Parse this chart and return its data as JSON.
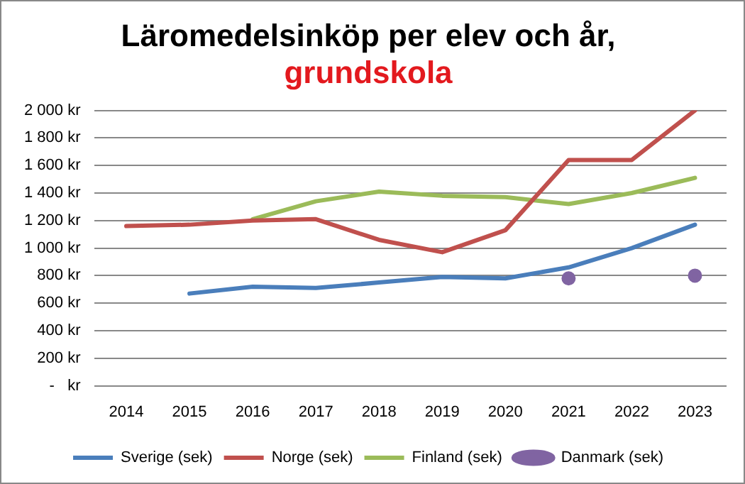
{
  "chart_data": {
    "type": "line",
    "title": "Läromedelsinköp per elev och år,",
    "subtitle": "grundskola",
    "categories": [
      "2014",
      "2015",
      "2016",
      "2017",
      "2018",
      "2019",
      "2020",
      "2021",
      "2022",
      "2023"
    ],
    "series": [
      {
        "name": "Sverige (sek)",
        "color": "#4a7ebb",
        "marker": "none",
        "values": [
          null,
          670,
          720,
          710,
          750,
          790,
          780,
          860,
          1000,
          1170
        ]
      },
      {
        "name": "Norge (sek)",
        "color": "#c0504d",
        "marker": "none",
        "values": [
          1160,
          1170,
          1200,
          1210,
          1060,
          970,
          1130,
          1640,
          1640,
          2000
        ]
      },
      {
        "name": "Finland (sek)",
        "color": "#9bbb59",
        "marker": "none",
        "values": [
          null,
          null,
          1210,
          1340,
          1410,
          1380,
          1370,
          1320,
          1400,
          1510
        ]
      },
      {
        "name": "Danmark (sek)",
        "type": "scatter",
        "color": "#8064a2",
        "marker": "circle",
        "values": [
          null,
          null,
          null,
          null,
          null,
          null,
          null,
          780,
          null,
          800
        ]
      }
    ],
    "ylim": [
      0,
      2000
    ],
    "yticks": [
      {
        "value": 0,
        "label": "-   kr"
      },
      {
        "value": 200,
        "label": "200 kr"
      },
      {
        "value": 400,
        "label": "400 kr"
      },
      {
        "value": 600,
        "label": "600 kr"
      },
      {
        "value": 800,
        "label": "800 kr"
      },
      {
        "value": 1000,
        "label": "1 000 kr"
      },
      {
        "value": 1200,
        "label": "1 200 kr"
      },
      {
        "value": 1400,
        "label": "1 400 kr"
      },
      {
        "value": 1600,
        "label": "1 600 kr"
      },
      {
        "value": 1800,
        "label": "1 800 kr"
      },
      {
        "value": 2000,
        "label": "2 000 kr"
      }
    ],
    "grid": "y",
    "legend": "bottom",
    "line_style": "solid"
  }
}
